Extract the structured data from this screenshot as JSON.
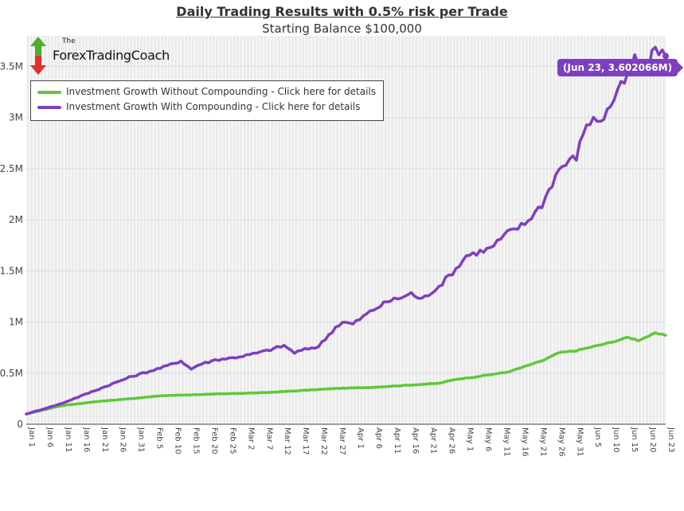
{
  "chart_data": {
    "type": "line",
    "title": "Daily Trading Results with 0.5% risk per Trade",
    "subtitle": "Starting Balance $100,000",
    "xlabel": "",
    "ylabel": "",
    "ylim": [
      0,
      3800000
    ],
    "y_ticks": [
      0,
      500000,
      1000000,
      1500000,
      2000000,
      2500000,
      3000000,
      3500000
    ],
    "y_tick_labels": [
      "0",
      "0.5M",
      "1M",
      "1.5M",
      "2M",
      "2.5M",
      "3M",
      "3.5M"
    ],
    "grid": true,
    "legend_position": "top-left",
    "series": [
      {
        "name": "Investment Growth Without Compounding - Click here for details",
        "color": "#5cc93a",
        "anchors": [
          [
            0,
            100000
          ],
          [
            10,
            180000
          ],
          [
            20,
            220000
          ],
          [
            30,
            250000
          ],
          [
            40,
            280000
          ],
          [
            50,
            290000
          ],
          [
            60,
            300000
          ],
          [
            70,
            310000
          ],
          [
            80,
            330000
          ],
          [
            90,
            350000
          ],
          [
            100,
            360000
          ],
          [
            110,
            380000
          ],
          [
            120,
            400000
          ],
          [
            125,
            440000
          ],
          [
            130,
            460000
          ],
          [
            140,
            510000
          ],
          [
            150,
            620000
          ],
          [
            155,
            700000
          ],
          [
            160,
            720000
          ],
          [
            165,
            760000
          ],
          [
            170,
            800000
          ],
          [
            175,
            850000
          ],
          [
            178,
            820000
          ],
          [
            183,
            890000
          ],
          [
            186,
            870000
          ]
        ]
      },
      {
        "name": "Investment Growth With Compounding - Click here for details",
        "color": "#7d3fc0",
        "anchors": [
          [
            0,
            100000
          ],
          [
            10,
            200000
          ],
          [
            20,
            330000
          ],
          [
            30,
            460000
          ],
          [
            40,
            560000
          ],
          [
            45,
            620000
          ],
          [
            48,
            540000
          ],
          [
            50,
            580000
          ],
          [
            55,
            630000
          ],
          [
            60,
            650000
          ],
          [
            65,
            680000
          ],
          [
            70,
            720000
          ],
          [
            75,
            770000
          ],
          [
            78,
            700000
          ],
          [
            82,
            740000
          ],
          [
            85,
            760000
          ],
          [
            90,
            950000
          ],
          [
            92,
            1000000
          ],
          [
            95,
            980000
          ],
          [
            100,
            1100000
          ],
          [
            105,
            1200000
          ],
          [
            110,
            1250000
          ],
          [
            112,
            1280000
          ],
          [
            115,
            1220000
          ],
          [
            120,
            1350000
          ],
          [
            125,
            1520000
          ],
          [
            128,
            1650000
          ],
          [
            135,
            1720000
          ],
          [
            140,
            1870000
          ],
          [
            145,
            1960000
          ],
          [
            150,
            2150000
          ],
          [
            155,
            2500000
          ],
          [
            160,
            2620000
          ],
          [
            163,
            2950000
          ],
          [
            168,
            3000000
          ],
          [
            172,
            3250000
          ],
          [
            175,
            3400000
          ],
          [
            177,
            3580000
          ],
          [
            180,
            3400000
          ],
          [
            183,
            3700000
          ],
          [
            186,
            3602066
          ]
        ]
      }
    ],
    "x_tick_labels": [
      "Jan 1",
      "Jan 6",
      "Jan 11",
      "Jan 16",
      "Jan 21",
      "Jan 26",
      "Jan 31",
      "Feb 5",
      "Feb 10",
      "Feb 15",
      "Feb 20",
      "Feb 25",
      "Mar 2",
      "Mar 7",
      "Mar 12",
      "Mar 17",
      "Mar 22",
      "Mar 27",
      "Apr 1",
      "Apr 6",
      "Apr 11",
      "Apr 16",
      "Apr 21",
      "Apr 26",
      "May 1",
      "May 6",
      "May 11",
      "May 16",
      "May 21",
      "May 26",
      "May 31",
      "Jun 5",
      "Jun 10",
      "Jun 15",
      "Jun 20",
      "Jun 23"
    ],
    "tooltip": {
      "label": "(Jun 23, 3.602066M)",
      "series": "Investment Growth With Compounding - Click here for details",
      "x": "Jun 23",
      "value": 3602066
    }
  },
  "logo": {
    "small": "The",
    "name": "ForexTradingCoach"
  },
  "colors": {
    "background": "#ebebeb",
    "gridline": "#ffffff",
    "green": "#5cc93a",
    "purple": "#7d3fc0",
    "logo_green": "#4caf2e",
    "logo_red": "#e03030"
  }
}
